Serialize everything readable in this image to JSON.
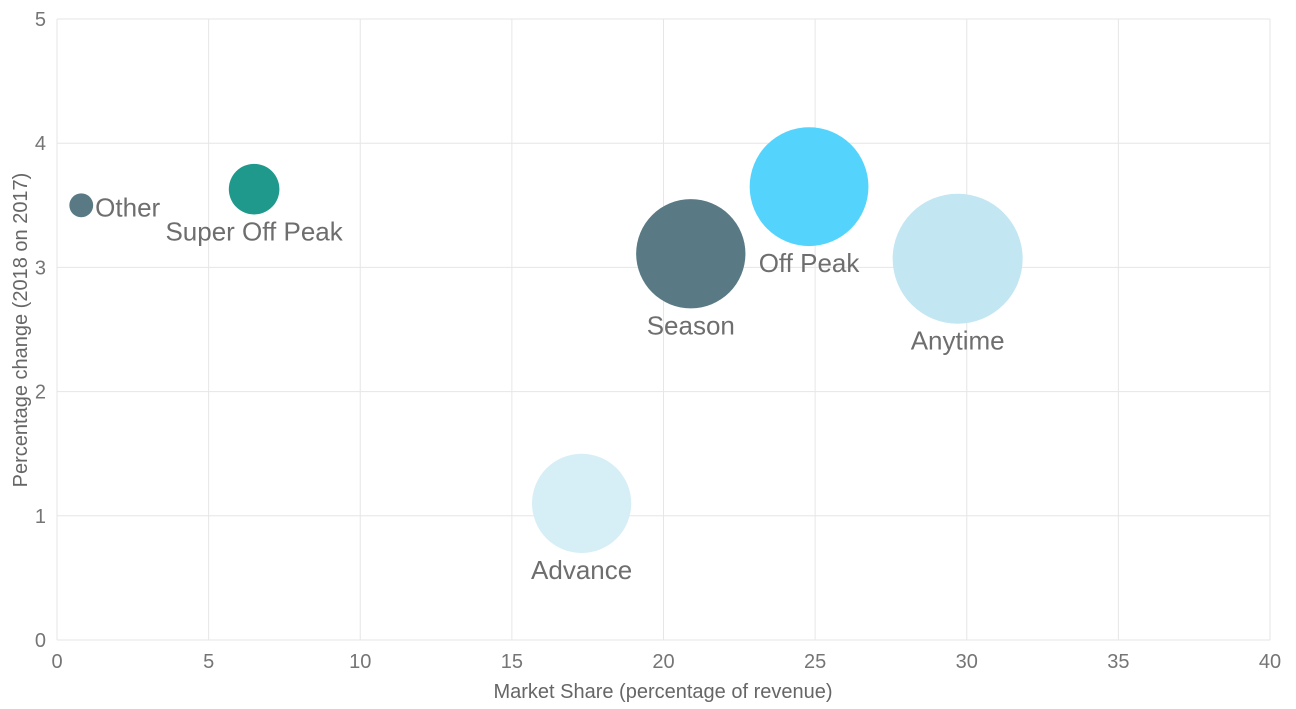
{
  "chart_data": {
    "type": "scatter",
    "subtype": "bubble",
    "xlabel": "Market Share (percentage of revenue)",
    "ylabel": "Percentage change (2018 on 2017)",
    "xlim": [
      0,
      40
    ],
    "ylim": [
      0,
      5
    ],
    "x_ticks": [
      "0",
      "5",
      "10",
      "15",
      "20",
      "25",
      "30",
      "35",
      "40"
    ],
    "y_ticks": [
      "0",
      "1",
      "2",
      "3",
      "4",
      "5"
    ],
    "grid": true,
    "legend": "none",
    "points": [
      {
        "label": "Other",
        "x": 0.8,
        "y": 3.5,
        "size": 1.0,
        "color": "#597a84",
        "label_position": "right"
      },
      {
        "label": "Super Off Peak",
        "x": 6.5,
        "y": 3.63,
        "size": 4.5,
        "color": "#1e998c",
        "label_position": "below"
      },
      {
        "label": "Advance",
        "x": 17.3,
        "y": 1.1,
        "size": 17.3,
        "color": "#d6eef6",
        "label_position": "below"
      },
      {
        "label": "Season",
        "x": 20.9,
        "y": 3.11,
        "size": 21.0,
        "color": "#597a84",
        "label_position": "below"
      },
      {
        "label": "Off Peak",
        "x": 24.8,
        "y": 3.65,
        "size": 24.8,
        "color": "#54d4fc",
        "label_position": "below"
      },
      {
        "label": "Anytime",
        "x": 29.7,
        "y": 3.07,
        "size": 29.7,
        "color": "#c2e6f2",
        "label_position": "below"
      }
    ]
  }
}
